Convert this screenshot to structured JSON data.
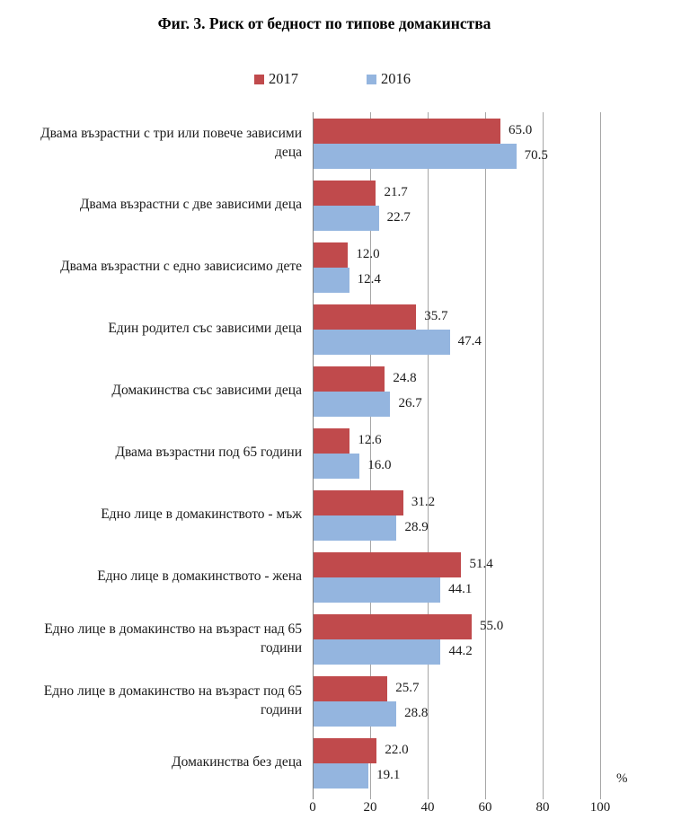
{
  "figure_caption": "Фиг. 3. Риск от бедност по типове домакинства",
  "colors": {
    "series_2017": "#c04a4c",
    "series_2016": "#94b5df",
    "grid": "#a6a6a6",
    "axis": "#7f7f7f",
    "text": "#1a1a1a"
  },
  "chart_data": {
    "type": "bar",
    "orientation": "horizontal",
    "title": "Фиг. 3. Риск от бедност по типове домакинства",
    "unit": "%",
    "xlim": [
      0,
      100
    ],
    "x_ticks": [
      0,
      20,
      40,
      60,
      80,
      100
    ],
    "grid": true,
    "legend_position": "top",
    "value_format": "1dp",
    "categories": [
      "Двама възрастни с три или повече зависими деца",
      "Двама възрастни с две зависими деца",
      "Двама възрастни с едно зависисимо дете",
      "Един родител със зависими деца",
      "Домакинства със зависими деца",
      "Двама възрастни под 65 години",
      "Едно лице в домакинството - мъж",
      "Едно лице в домакинството - жена",
      "Едно лице в домакинство на възраст над 65 години",
      "Едно лице в домакинство на възраст под 65 години",
      "Домакинства без деца"
    ],
    "series": [
      {
        "name": "2017",
        "color": "#c04a4c",
        "values": [
          65.0,
          21.7,
          12.0,
          35.7,
          24.8,
          12.6,
          31.2,
          51.4,
          55.0,
          25.7,
          22.0
        ]
      },
      {
        "name": "2016",
        "color": "#94b5df",
        "values": [
          70.5,
          22.7,
          12.4,
          47.4,
          26.7,
          16.0,
          28.9,
          44.1,
          44.2,
          28.8,
          19.1
        ]
      }
    ]
  }
}
